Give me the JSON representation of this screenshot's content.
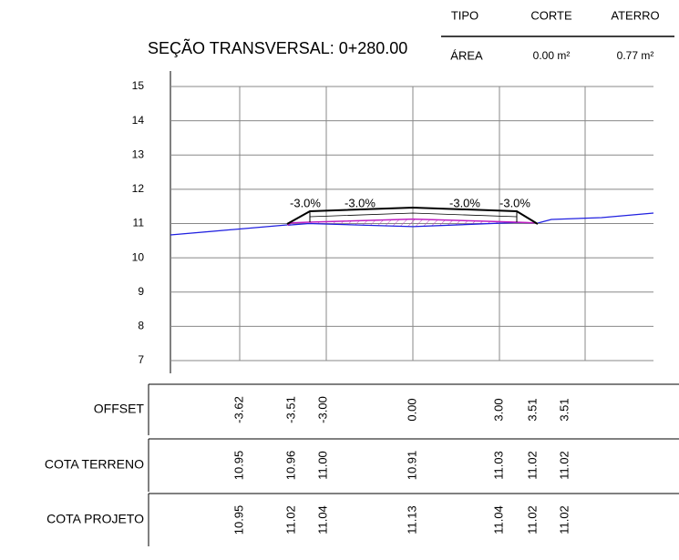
{
  "title": "SEÇÃO TRANSVERSAL: 0+280.00",
  "area_table": {
    "headers": [
      "TIPO",
      "CORTE",
      "ATERRO"
    ],
    "row": [
      "ÁREA",
      "0.00 m²",
      "0.77 m²"
    ]
  },
  "axis": {
    "ylim": [
      7,
      15
    ],
    "yticks": [
      7,
      8,
      9,
      10,
      11,
      12,
      13,
      14,
      15
    ]
  },
  "slopes": [
    "-3.0%",
    "-3.0%",
    "-3.0%",
    "-3.0%"
  ],
  "rows": [
    {
      "label": "OFFSET",
      "values": [
        "-3.62",
        "-3.51",
        "-3.00",
        "0.00",
        "3.00",
        "3.51",
        "3.51"
      ]
    },
    {
      "label": "COTA TERRENO",
      "values": [
        "10.95",
        "10.96",
        "11.00",
        "10.91",
        "11.03",
        "11.02",
        "11.02"
      ]
    },
    {
      "label": "COTA PROJETO",
      "values": [
        "10.95",
        "11.02",
        "11.04",
        "11.13",
        "11.04",
        "11.02",
        "11.02"
      ]
    }
  ]
}
